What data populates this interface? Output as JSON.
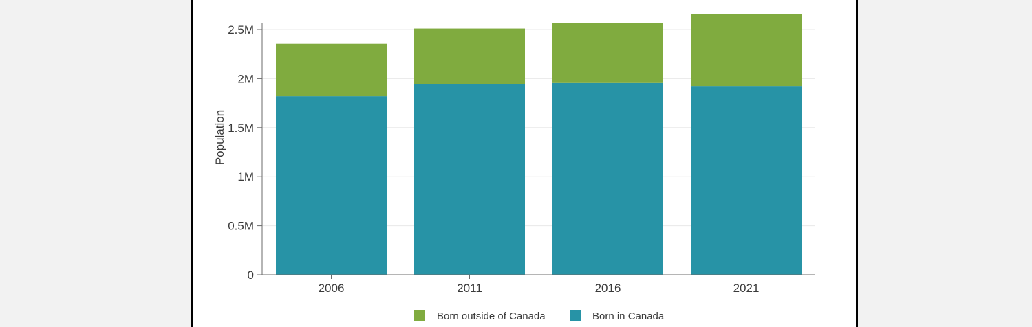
{
  "chart_data": {
    "type": "bar",
    "stacked": true,
    "categories": [
      "2006",
      "2011",
      "2016",
      "2021"
    ],
    "series": [
      {
        "name": "Born in Canada",
        "color": "#2793a6",
        "values": [
          1820000,
          1940000,
          1955000,
          1925000
        ]
      },
      {
        "name": "Born outside of Canada",
        "color": "#80ab3f",
        "values": [
          535000,
          570000,
          610000,
          735000
        ]
      }
    ],
    "ylabel": "Population",
    "xlabel": "",
    "ylim": [
      0,
      2500000
    ],
    "yticks": [
      {
        "value": 0,
        "label": "0"
      },
      {
        "value": 500000,
        "label": "0.5M"
      },
      {
        "value": 1000000,
        "label": "1M"
      },
      {
        "value": 1500000,
        "label": "1.5M"
      },
      {
        "value": 2000000,
        "label": "2M"
      },
      {
        "value": 2500000,
        "label": "2.5M"
      }
    ],
    "grid": true,
    "legend": {
      "placement": "bottom",
      "items": [
        {
          "label": "Born outside of Canada",
          "color": "#80ab3f"
        },
        {
          "label": "Born in Canada",
          "color": "#2793a6"
        }
      ]
    }
  }
}
